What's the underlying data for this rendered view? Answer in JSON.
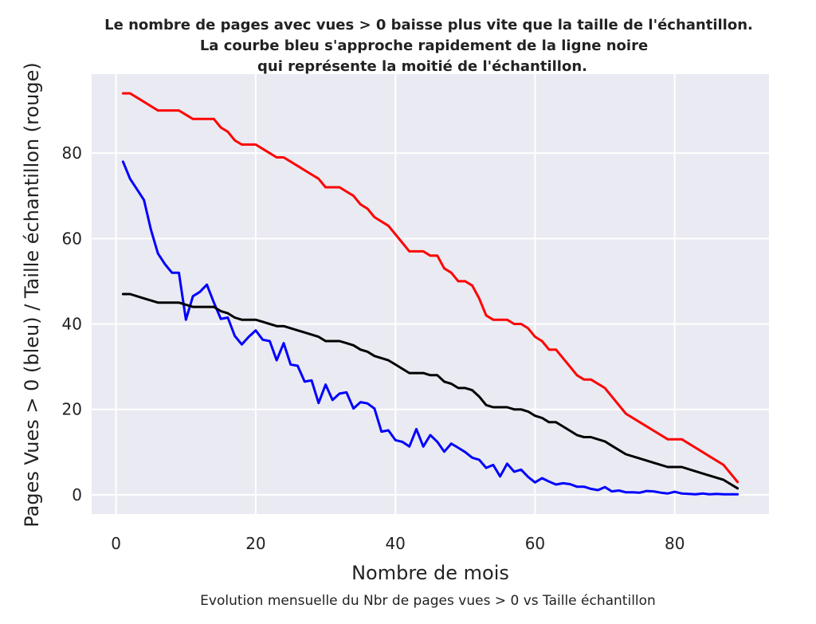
{
  "chart_data": {
    "type": "line",
    "title_lines": [
      "Le nombre de pages avec vues > 0 baisse plus vite que la taille de l'échantillon.",
      "La courbe bleu s'approche rapidement de la ligne noire",
      "qui représente la moitié de l'échantillon."
    ],
    "xlabel": "Nombre de mois",
    "ylabel": "Pages Vues > 0 (bleu) / Taille échantillon (rouge)",
    "caption": "Evolution mensuelle du Nbr de pages vues > 0 vs Taille échantillon",
    "xlim": [
      -3.5,
      93.5
    ],
    "ylim": [
      -4.5,
      98.5
    ],
    "xticks": [
      0,
      20,
      40,
      60,
      80
    ],
    "yticks": [
      0,
      20,
      40,
      60,
      80
    ],
    "grid": true,
    "background": "#EAEAF2",
    "series": [
      {
        "color": "#FF0000",
        "points": [
          [
            1,
            94
          ],
          [
            2,
            94
          ],
          [
            4,
            92
          ],
          [
            6,
            90
          ],
          [
            7,
            90
          ],
          [
            9,
            90
          ],
          [
            11,
            88
          ],
          [
            12,
            88
          ],
          [
            14,
            88
          ],
          [
            15,
            86
          ],
          [
            16,
            85
          ],
          [
            17,
            83
          ],
          [
            18,
            82
          ],
          [
            20,
            82
          ],
          [
            21,
            81
          ],
          [
            23,
            79
          ],
          [
            24,
            79
          ],
          [
            26,
            77
          ],
          [
            27,
            76
          ],
          [
            29,
            74
          ],
          [
            30,
            72
          ],
          [
            32,
            72
          ],
          [
            33,
            71
          ],
          [
            34,
            70
          ],
          [
            35,
            68
          ],
          [
            36,
            67
          ],
          [
            37,
            65
          ],
          [
            39,
            63
          ],
          [
            40,
            61
          ],
          [
            42,
            57
          ],
          [
            44,
            57
          ],
          [
            45,
            56
          ],
          [
            46,
            56
          ],
          [
            47,
            53
          ],
          [
            48,
            52
          ],
          [
            49,
            50
          ],
          [
            50,
            50
          ],
          [
            51,
            49
          ],
          [
            52,
            46
          ],
          [
            53,
            42
          ],
          [
            54,
            41
          ],
          [
            56,
            41
          ],
          [
            57,
            40
          ],
          [
            58,
            40
          ],
          [
            59,
            39
          ],
          [
            60,
            37
          ],
          [
            61,
            36
          ],
          [
            62,
            34
          ],
          [
            63,
            34
          ],
          [
            64,
            32
          ],
          [
            65,
            30
          ],
          [
            66,
            28
          ],
          [
            67,
            27
          ],
          [
            68,
            27
          ],
          [
            70,
            25
          ],
          [
            71,
            23
          ],
          [
            73,
            19
          ],
          [
            75,
            17
          ],
          [
            77,
            15
          ],
          [
            79,
            13
          ],
          [
            81,
            13
          ],
          [
            83,
            11
          ],
          [
            85,
            9
          ],
          [
            87,
            7
          ],
          [
            88,
            5
          ],
          [
            89,
            3
          ]
        ]
      },
      {
        "color": "#0000FF",
        "points": [
          [
            1,
            78
          ],
          [
            2,
            74
          ],
          [
            3,
            71.5
          ],
          [
            4,
            69
          ],
          [
            5,
            62
          ],
          [
            6,
            56.5
          ],
          [
            7,
            54
          ],
          [
            8,
            52
          ],
          [
            9,
            52
          ],
          [
            10,
            41
          ],
          [
            11,
            46.5
          ],
          [
            12,
            47.5
          ],
          [
            13,
            49.2
          ],
          [
            14,
            45
          ],
          [
            15,
            41.2
          ],
          [
            16,
            41.5
          ],
          [
            17,
            37.2
          ],
          [
            18,
            35.2
          ],
          [
            19,
            37
          ],
          [
            20,
            38.5
          ],
          [
            21,
            36.3
          ],
          [
            22,
            36
          ],
          [
            23,
            31.5
          ],
          [
            24,
            35.5
          ],
          [
            25,
            30.5
          ],
          [
            26,
            30.2
          ],
          [
            27,
            26.5
          ],
          [
            28,
            26.8
          ],
          [
            29,
            21.5
          ],
          [
            30,
            25.8
          ],
          [
            31,
            22.2
          ],
          [
            32,
            23.7
          ],
          [
            33,
            24
          ],
          [
            34,
            20.2
          ],
          [
            35,
            21.7
          ],
          [
            36,
            21.4
          ],
          [
            37,
            20.2
          ],
          [
            38,
            14.8
          ],
          [
            39,
            15.1
          ],
          [
            40,
            12.8
          ],
          [
            41,
            12.4
          ],
          [
            42,
            11.3
          ],
          [
            43,
            15.4
          ],
          [
            44,
            11.3
          ],
          [
            45,
            14
          ],
          [
            46,
            12.4
          ],
          [
            47,
            10.1
          ],
          [
            48,
            12
          ],
          [
            49,
            11
          ],
          [
            50,
            10
          ],
          [
            51,
            8.7
          ],
          [
            52,
            8.2
          ],
          [
            53,
            6.3
          ],
          [
            54,
            7
          ],
          [
            55,
            4.3
          ],
          [
            56,
            7.3
          ],
          [
            57,
            5.4
          ],
          [
            58,
            5.9
          ],
          [
            59,
            4.2
          ],
          [
            60,
            2.9
          ],
          [
            61,
            3.9
          ],
          [
            62,
            3.1
          ],
          [
            63,
            2.4
          ],
          [
            64,
            2.7
          ],
          [
            65,
            2.5
          ],
          [
            66,
            1.9
          ],
          [
            67,
            1.9
          ],
          [
            68,
            1.4
          ],
          [
            69,
            1.1
          ],
          [
            70,
            1.8
          ],
          [
            71,
            0.8
          ],
          [
            72,
            1
          ],
          [
            73,
            0.6
          ],
          [
            74,
            0.6
          ],
          [
            75,
            0.5
          ],
          [
            76,
            0.9
          ],
          [
            77,
            0.8
          ],
          [
            78,
            0.5
          ],
          [
            79,
            0.3
          ],
          [
            80,
            0.7
          ],
          [
            81,
            0.3
          ],
          [
            82,
            0.2
          ],
          [
            83,
            0.1
          ],
          [
            84,
            0.3
          ],
          [
            85,
            0.1
          ],
          [
            86,
            0.2
          ],
          [
            87,
            0.1
          ],
          [
            88,
            0.1
          ],
          [
            89,
            0.1
          ]
        ]
      },
      {
        "color": "#000000",
        "points": [
          [
            1,
            47
          ],
          [
            2,
            47
          ],
          [
            4,
            46
          ],
          [
            6,
            45
          ],
          [
            7,
            45
          ],
          [
            9,
            45
          ],
          [
            11,
            44
          ],
          [
            12,
            44
          ],
          [
            14,
            44
          ],
          [
            15,
            43
          ],
          [
            16,
            42.5
          ],
          [
            17,
            41.5
          ],
          [
            18,
            41
          ],
          [
            20,
            41
          ],
          [
            21,
            40.5
          ],
          [
            23,
            39.5
          ],
          [
            24,
            39.5
          ],
          [
            26,
            38.5
          ],
          [
            27,
            38
          ],
          [
            29,
            37
          ],
          [
            30,
            36
          ],
          [
            32,
            36
          ],
          [
            33,
            35.5
          ],
          [
            34,
            35
          ],
          [
            35,
            34
          ],
          [
            36,
            33.5
          ],
          [
            37,
            32.5
          ],
          [
            39,
            31.5
          ],
          [
            40,
            30.5
          ],
          [
            42,
            28.5
          ],
          [
            44,
            28.5
          ],
          [
            45,
            28
          ],
          [
            46,
            28
          ],
          [
            47,
            26.5
          ],
          [
            48,
            26
          ],
          [
            49,
            25
          ],
          [
            50,
            25
          ],
          [
            51,
            24.5
          ],
          [
            52,
            23
          ],
          [
            53,
            21
          ],
          [
            54,
            20.5
          ],
          [
            56,
            20.5
          ],
          [
            57,
            20
          ],
          [
            58,
            20
          ],
          [
            59,
            19.5
          ],
          [
            60,
            18.5
          ],
          [
            61,
            18
          ],
          [
            62,
            17
          ],
          [
            63,
            17
          ],
          [
            64,
            16
          ],
          [
            65,
            15
          ],
          [
            66,
            14
          ],
          [
            67,
            13.5
          ],
          [
            68,
            13.5
          ],
          [
            70,
            12.5
          ],
          [
            71,
            11.5
          ],
          [
            73,
            9.5
          ],
          [
            75,
            8.5
          ],
          [
            77,
            7.5
          ],
          [
            79,
            6.5
          ],
          [
            81,
            6.5
          ],
          [
            83,
            5.5
          ],
          [
            85,
            4.5
          ],
          [
            87,
            3.5
          ],
          [
            88,
            2.5
          ],
          [
            89,
            1.5
          ]
        ]
      }
    ]
  }
}
